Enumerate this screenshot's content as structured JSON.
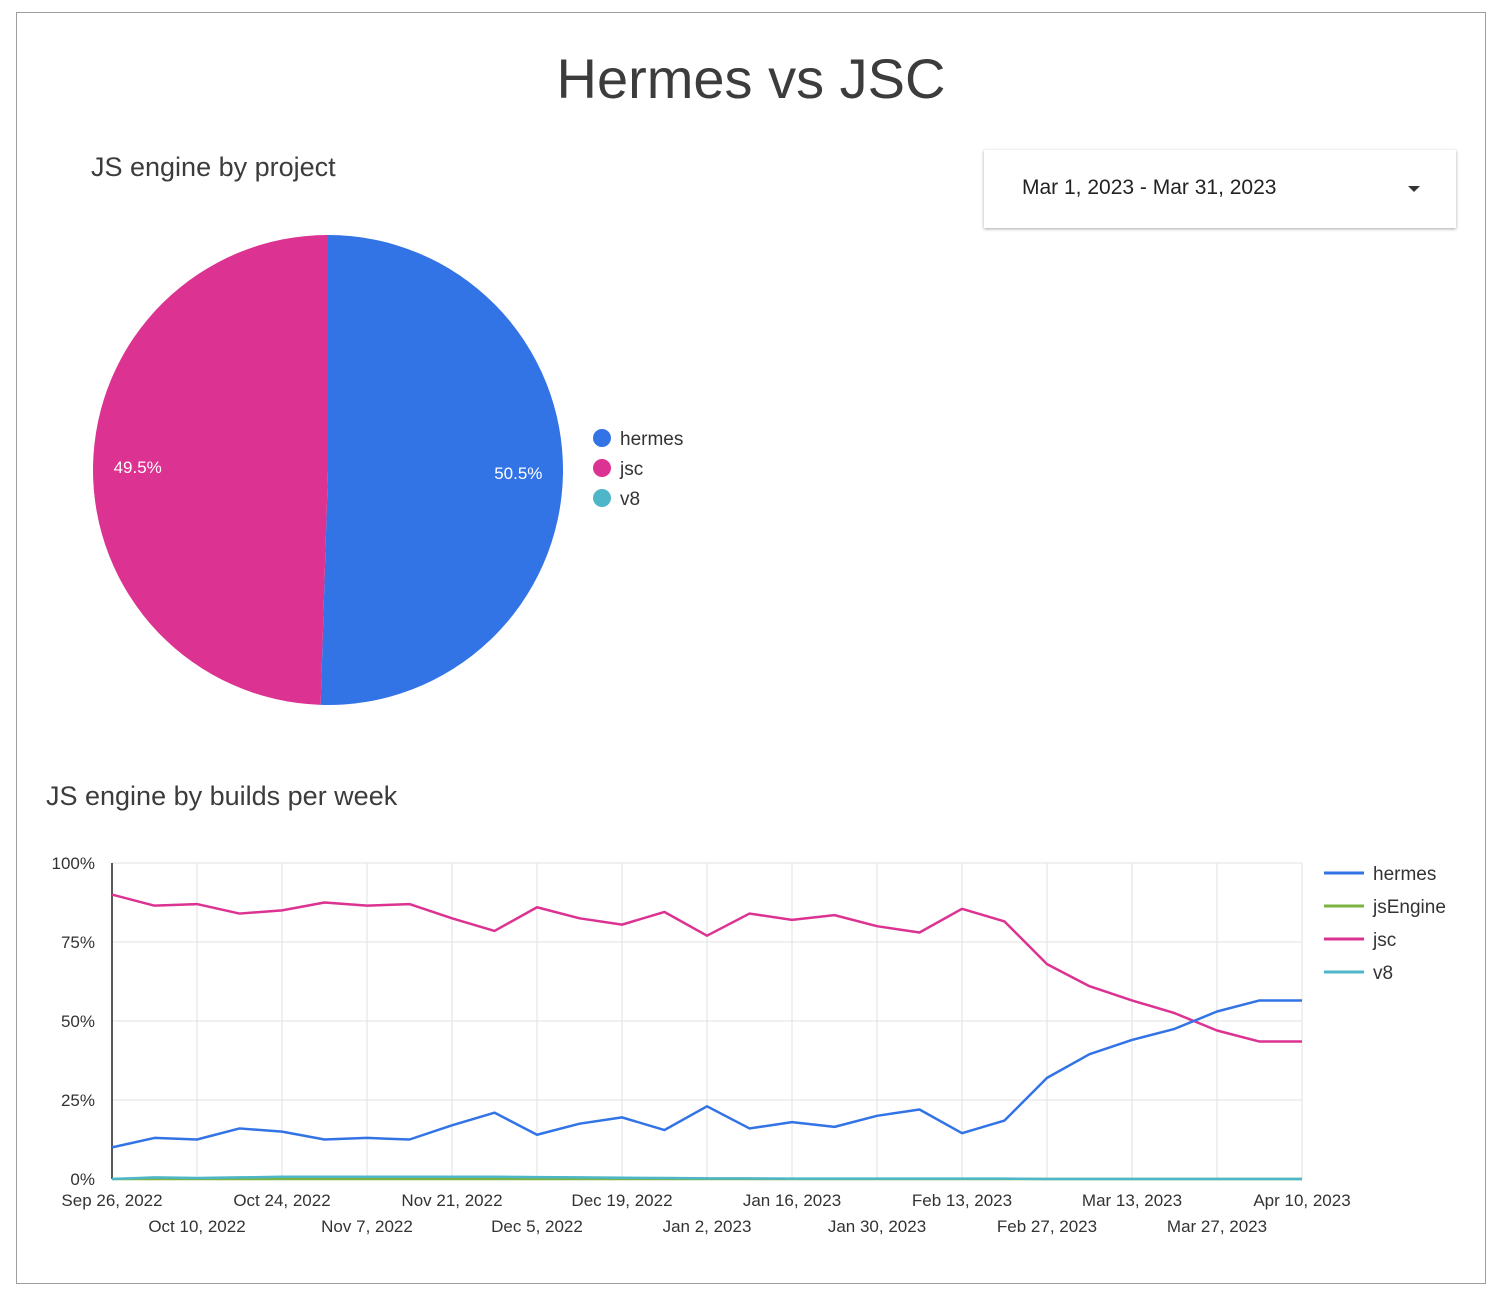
{
  "page": {
    "title": "Hermes vs JSC"
  },
  "date_range": {
    "value": "Mar 1, 2023 - Mar 31, 2023"
  },
  "pie_section": {
    "title": "JS engine by project"
  },
  "line_section": {
    "title": "JS engine by builds per week"
  },
  "colors": {
    "hermes": "#3273e6",
    "jsEngine": "#7cb342",
    "jsc": "#dc3291",
    "v8": "#4db6c8"
  },
  "chart_data": [
    {
      "type": "pie",
      "title": "JS engine by project",
      "slices": [
        {
          "label": "hermes",
          "value": 50.5,
          "display": "50.5%",
          "color": "#3273e6"
        },
        {
          "label": "jsc",
          "value": 49.5,
          "display": "49.5%",
          "color": "#dc3291"
        },
        {
          "label": "v8",
          "value": 0,
          "display": "",
          "color": "#4db6c8"
        }
      ],
      "legend": {
        "position": "right",
        "entries": [
          "hermes",
          "jsc",
          "v8"
        ]
      }
    },
    {
      "type": "line",
      "title": "JS engine by builds per week",
      "x": [
        "Sep 26, 2022",
        "Oct 3, 2022",
        "Oct 10, 2022",
        "Oct 17, 2022",
        "Oct 24, 2022",
        "Oct 31, 2022",
        "Nov 7, 2022",
        "Nov 14, 2022",
        "Nov 21, 2022",
        "Nov 28, 2022",
        "Dec 5, 2022",
        "Dec 12, 2022",
        "Dec 19, 2022",
        "Dec 26, 2022",
        "Jan 2, 2023",
        "Jan 9, 2023",
        "Jan 16, 2023",
        "Jan 23, 2023",
        "Jan 30, 2023",
        "Feb 6, 2023",
        "Feb 13, 2023",
        "Feb 20, 2023",
        "Feb 27, 2023",
        "Mar 6, 2023",
        "Mar 13, 2023",
        "Mar 20, 2023",
        "Mar 27, 2023",
        "Apr 3, 2023",
        "Apr 10, 2023"
      ],
      "x_tick_labels": [
        "Sep 26, 2022",
        "Oct 10, 2022",
        "Oct 24, 2022",
        "Nov 7, 2022",
        "Nov 21, 2022",
        "Dec 5, 2022",
        "Dec 19, 2022",
        "Jan 2, 2023",
        "Jan 16, 2023",
        "Jan 30, 2023",
        "Feb 13, 2023",
        "Feb 27, 2023",
        "Mar 13, 2023",
        "Mar 27, 2023",
        "Apr 10, 2023"
      ],
      "y_tick_labels": [
        "0%",
        "25%",
        "50%",
        "75%",
        "100%"
      ],
      "ylim": [
        0,
        100
      ],
      "grid": true,
      "legend": {
        "position": "right"
      },
      "series": [
        {
          "name": "hermes",
          "color": "#3273e6",
          "values": [
            10,
            13,
            12.5,
            16,
            15,
            12.5,
            13,
            12.5,
            17,
            21,
            14,
            17.5,
            19.5,
            15.5,
            23,
            16,
            18,
            16.5,
            20,
            22,
            14.5,
            18.5,
            32,
            39.5,
            44,
            47.5,
            53,
            56.5,
            56.5
          ]
        },
        {
          "name": "jsEngine",
          "color": "#7cb342",
          "values": [
            0,
            0,
            0,
            0,
            0,
            0,
            0,
            0,
            0,
            0,
            0,
            0,
            0,
            0,
            0,
            0,
            0,
            0,
            0,
            0,
            0,
            0,
            0,
            0,
            0,
            0,
            0,
            0,
            0
          ]
        },
        {
          "name": "jsc",
          "color": "#dc3291",
          "values": [
            90,
            86.5,
            87,
            84,
            85,
            87.5,
            86.5,
            87,
            82.5,
            78.5,
            86,
            82.5,
            80.5,
            84.5,
            77,
            84,
            82,
            83.5,
            80,
            78,
            85.5,
            81.5,
            68,
            61,
            56.5,
            52.5,
            47,
            43.5,
            43.5
          ]
        },
        {
          "name": "v8",
          "color": "#4db6c8",
          "values": [
            0,
            0.5,
            0.3,
            0.5,
            0.7,
            0.7,
            0.7,
            0.7,
            0.7,
            0.7,
            0.6,
            0.5,
            0.4,
            0.3,
            0.2,
            0.2,
            0.1,
            0.1,
            0.1,
            0.1,
            0.1,
            0.1,
            0,
            0,
            0,
            0,
            0,
            0,
            0
          ]
        }
      ]
    }
  ]
}
